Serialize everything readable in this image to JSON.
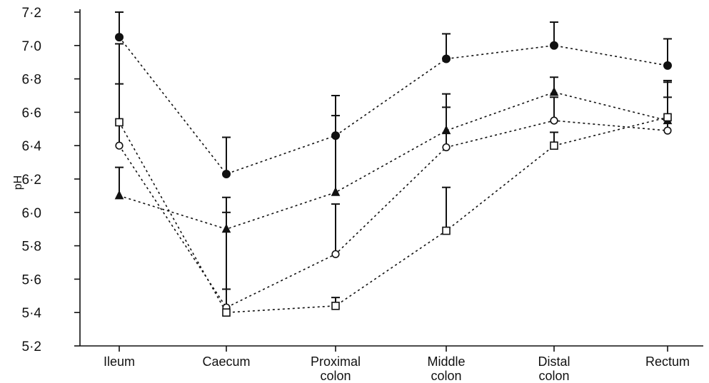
{
  "chart_data": {
    "type": "line",
    "ylabel": "pH",
    "xlabel": "",
    "ylim": [
      5.2,
      7.2
    ],
    "yticks": [
      "5·2",
      "5·4",
      "5·6",
      "5·8",
      "6·0",
      "6·2",
      "6·4",
      "6·6",
      "6·8",
      "7·0",
      "7·2"
    ],
    "categories": [
      [
        "Ileum"
      ],
      [
        "Caecum"
      ],
      [
        "Proximal",
        "colon"
      ],
      [
        "Middle",
        "colon"
      ],
      [
        "Distal",
        "colon"
      ],
      [
        "Rectum"
      ]
    ],
    "series": [
      {
        "marker": "filled-circle",
        "values": [
          7.05,
          6.23,
          6.46,
          6.92,
          7.0,
          6.88
        ],
        "error_upper": [
          7.2,
          6.45,
          6.7,
          7.07,
          7.14,
          7.04
        ]
      },
      {
        "marker": "filled-triangle",
        "values": [
          6.1,
          5.9,
          6.12,
          6.49,
          6.72,
          6.55
        ],
        "error_upper": [
          6.27,
          6.09,
          6.58,
          6.71,
          6.81,
          6.79
        ]
      },
      {
        "marker": "open-circle",
        "values": [
          6.4,
          5.43,
          5.75,
          6.39,
          6.55,
          6.49
        ],
        "error_upper": [
          7.01,
          6.0,
          6.05,
          6.63,
          6.69,
          6.69
        ]
      },
      {
        "marker": "open-square",
        "values": [
          6.54,
          5.4,
          5.44,
          5.89,
          6.4,
          6.57
        ],
        "error_upper": [
          6.77,
          5.54,
          5.49,
          6.15,
          6.48,
          6.78
        ]
      }
    ]
  }
}
